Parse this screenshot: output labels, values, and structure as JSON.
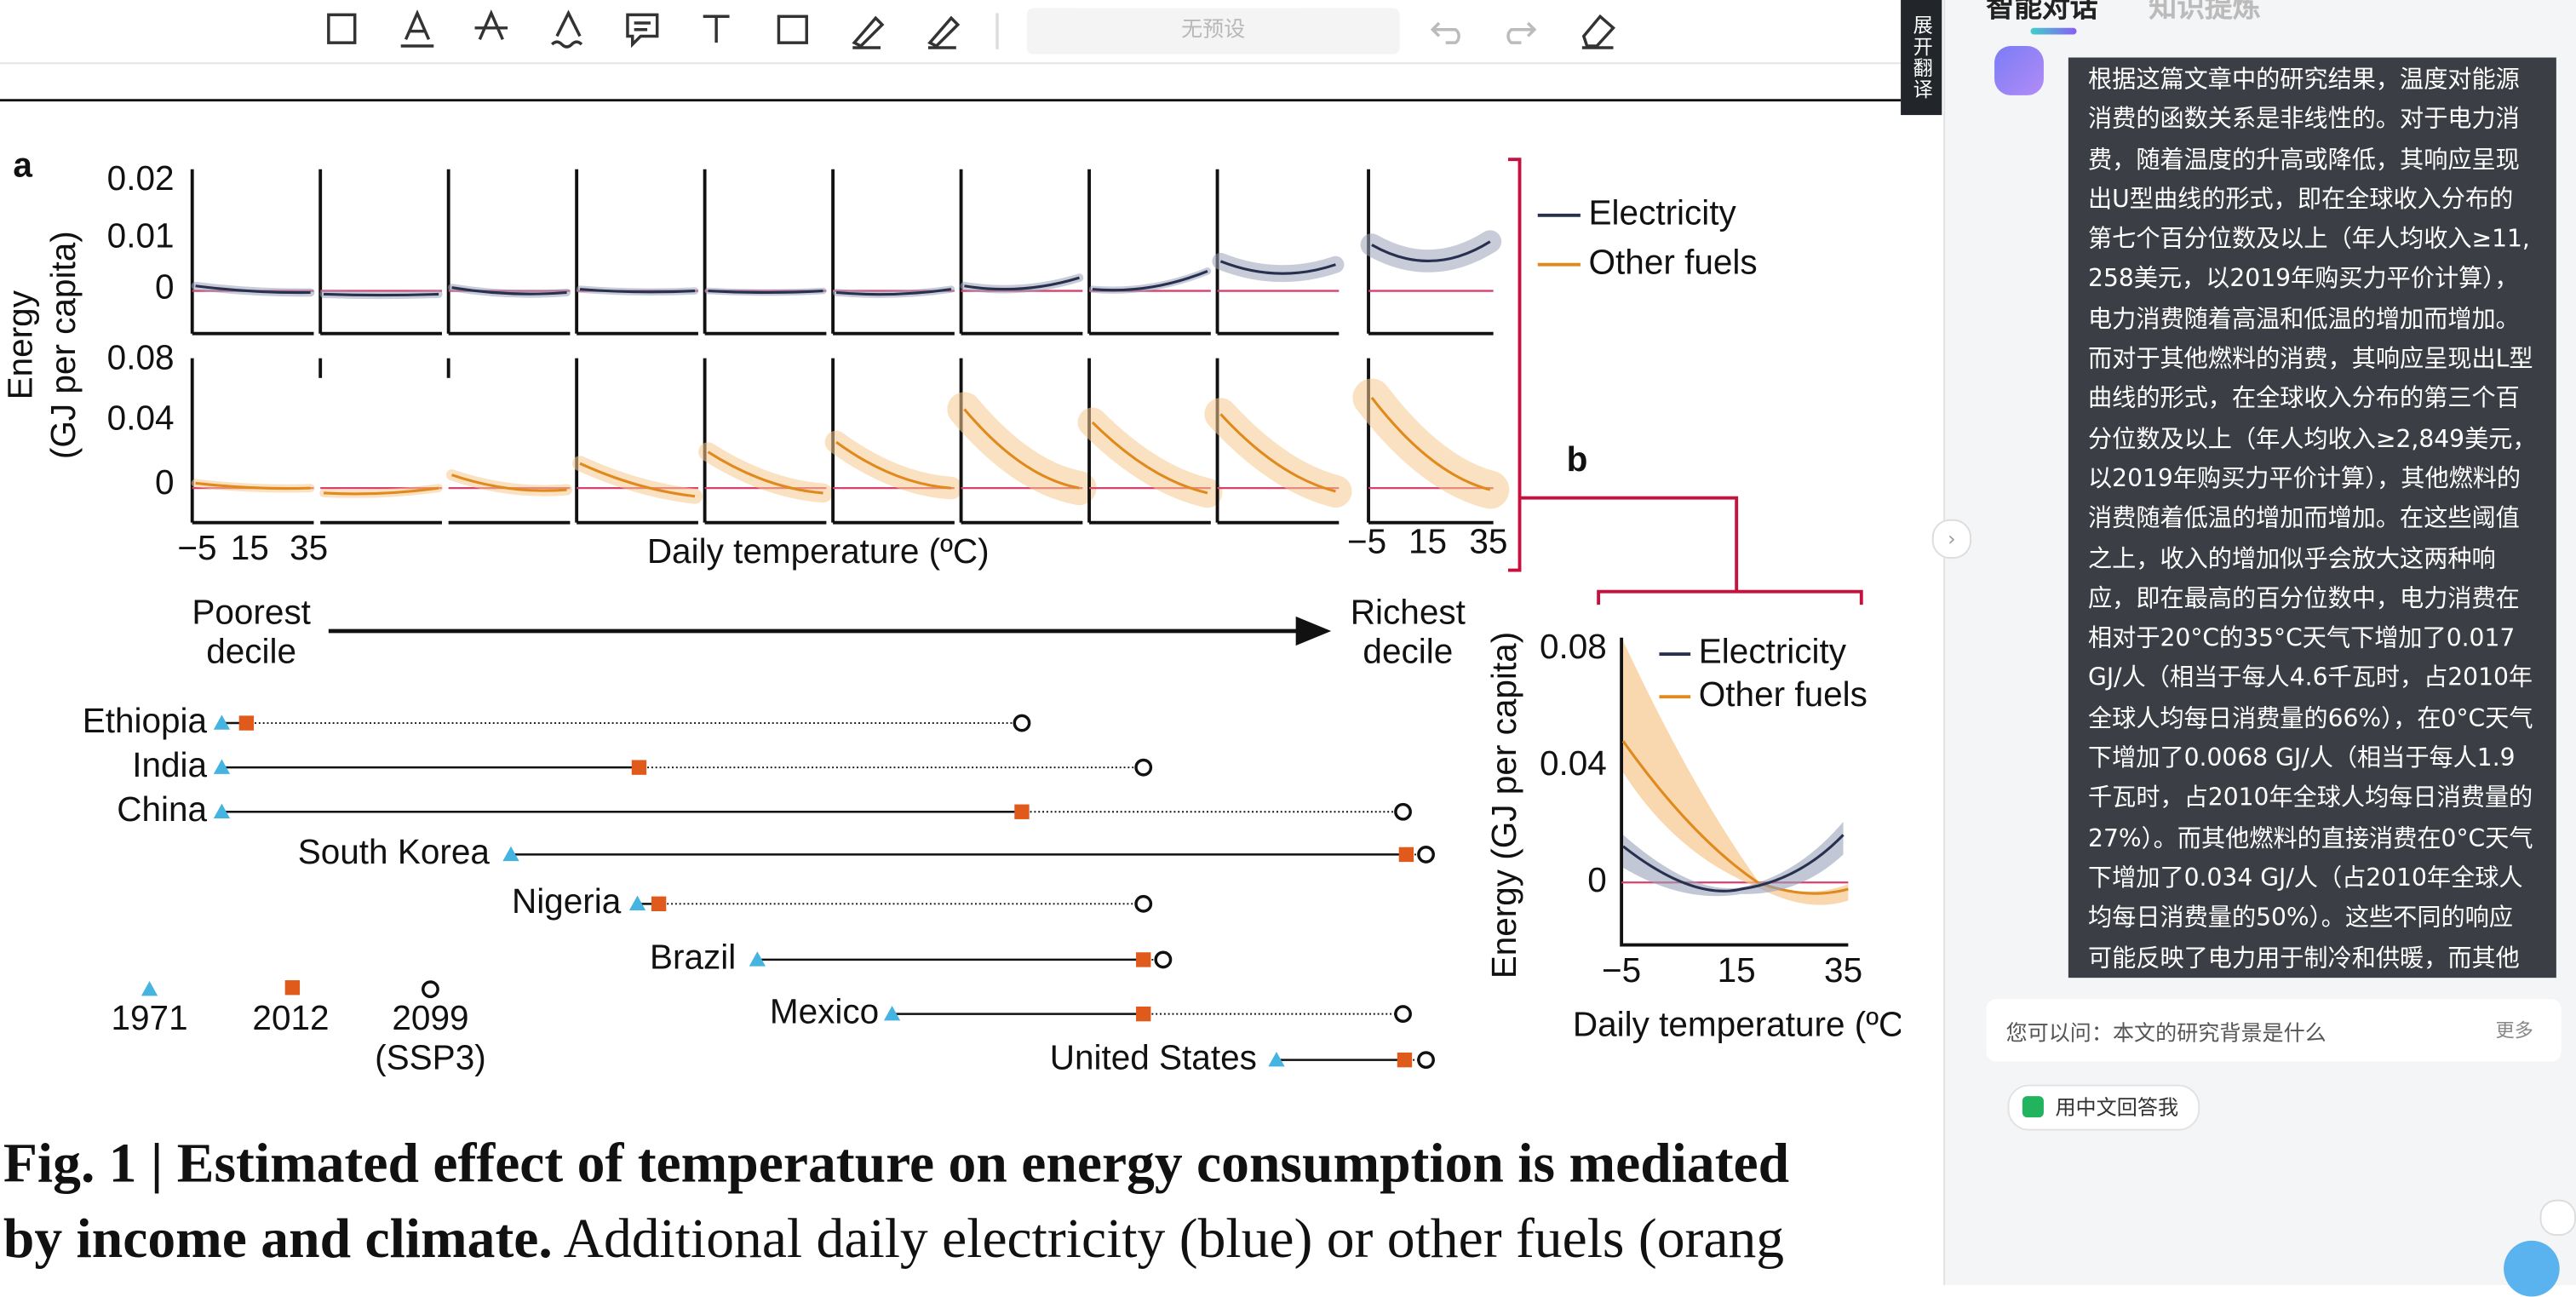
{
  "toolbar": {
    "preset": "无预设",
    "side_tab": "展开翻译"
  },
  "figure": {
    "panel_a": {
      "label": "a",
      "y_label": [
        "Energy",
        "(GJ per capita)"
      ],
      "top_yticks": [
        "0.02",
        "0.01",
        "0"
      ],
      "bottom_yticks": [
        "0.08",
        "0.04",
        "0"
      ],
      "xticks_left": [
        "−5",
        "15",
        "35"
      ],
      "xticks_right": [
        "−5",
        "15",
        "35"
      ],
      "x_label": "Daily temperature (ºC)",
      "legend": [
        "Electricity",
        "Other fuels"
      ],
      "poorest": [
        "Poorest",
        "decile"
      ],
      "richest": [
        "Richest",
        "decile"
      ]
    },
    "countries": [
      "Ethiopia",
      "India",
      "China",
      "South Korea",
      "Nigeria",
      "Brazil",
      "Mexico",
      "United States"
    ],
    "year_legend": [
      "1971",
      "2012",
      "2099",
      "(SSP3)"
    ],
    "panel_b": {
      "label": "b",
      "y_label": "Energy (GJ per capita)",
      "yticks": [
        "0.08",
        "0.04",
        "0"
      ],
      "xticks": [
        "−5",
        "15",
        "35"
      ],
      "x_label": "Daily temperature (ºC",
      "legend": [
        "Electricity",
        "Other fuels"
      ]
    },
    "caption": {
      "line1": "Fig. 1 | Estimated effect of temperature on energy consumption is mediated",
      "line2_bold": "by income and climate.",
      "line2_rest": " Additional daily electricity (blue) or other fuels (orang"
    }
  },
  "chat": {
    "tabs": [
      "智能对话",
      "知识提炼"
    ],
    "answer": "根据这篇文章中的研究结果，温度对能源消费的函数关系是非线性的。对于电力消费，随着温度的升高或降低，其响应呈现出U型曲线的形式，即在全球收入分布的第七个百分位数及以上（年人均收入≥11,258美元，以2019年购买力平价计算），电力消费随着高温和低温的增加而增加。而对于其他燃料的消费，其响应呈现出L型曲线的形式，在全球收入分布的第三个百分位数及以上（年人均收入≥2,849美元，以2019年购买力平价计算），其他燃料的消费随着低温的增加而增加。在这些阈值之上，收入的增加似乎会放大这两种响应，即在最高的百分位数中，电力消费在相对于20°C的35°C天气下增加了0.017 GJ/人（相当于每人4.6千瓦时，占2010年全球人均每日消费量的66%），在0°C天气下增加了0.0068 GJ/人（相当于每人1.9千瓦时，占2010年全球人均每日消费量的27%）。而其他燃料的直接消费在0°C天气下增加了0.034 GJ/人（占2010年全球人均每日消费量的50%）。这些不同的响应可能反映了电力用于制冷和供暖，而其他燃料（如天然气、石油和煤炭）用于供暖。总的来说，这些研究结果揭示了经济发展如何在全球宏观经济尺度上塑造能源需求。",
    "suggestion": "您可以问：本文的研究背景是什么",
    "more": "更多",
    "language_button": "用中文回答我"
  }
}
